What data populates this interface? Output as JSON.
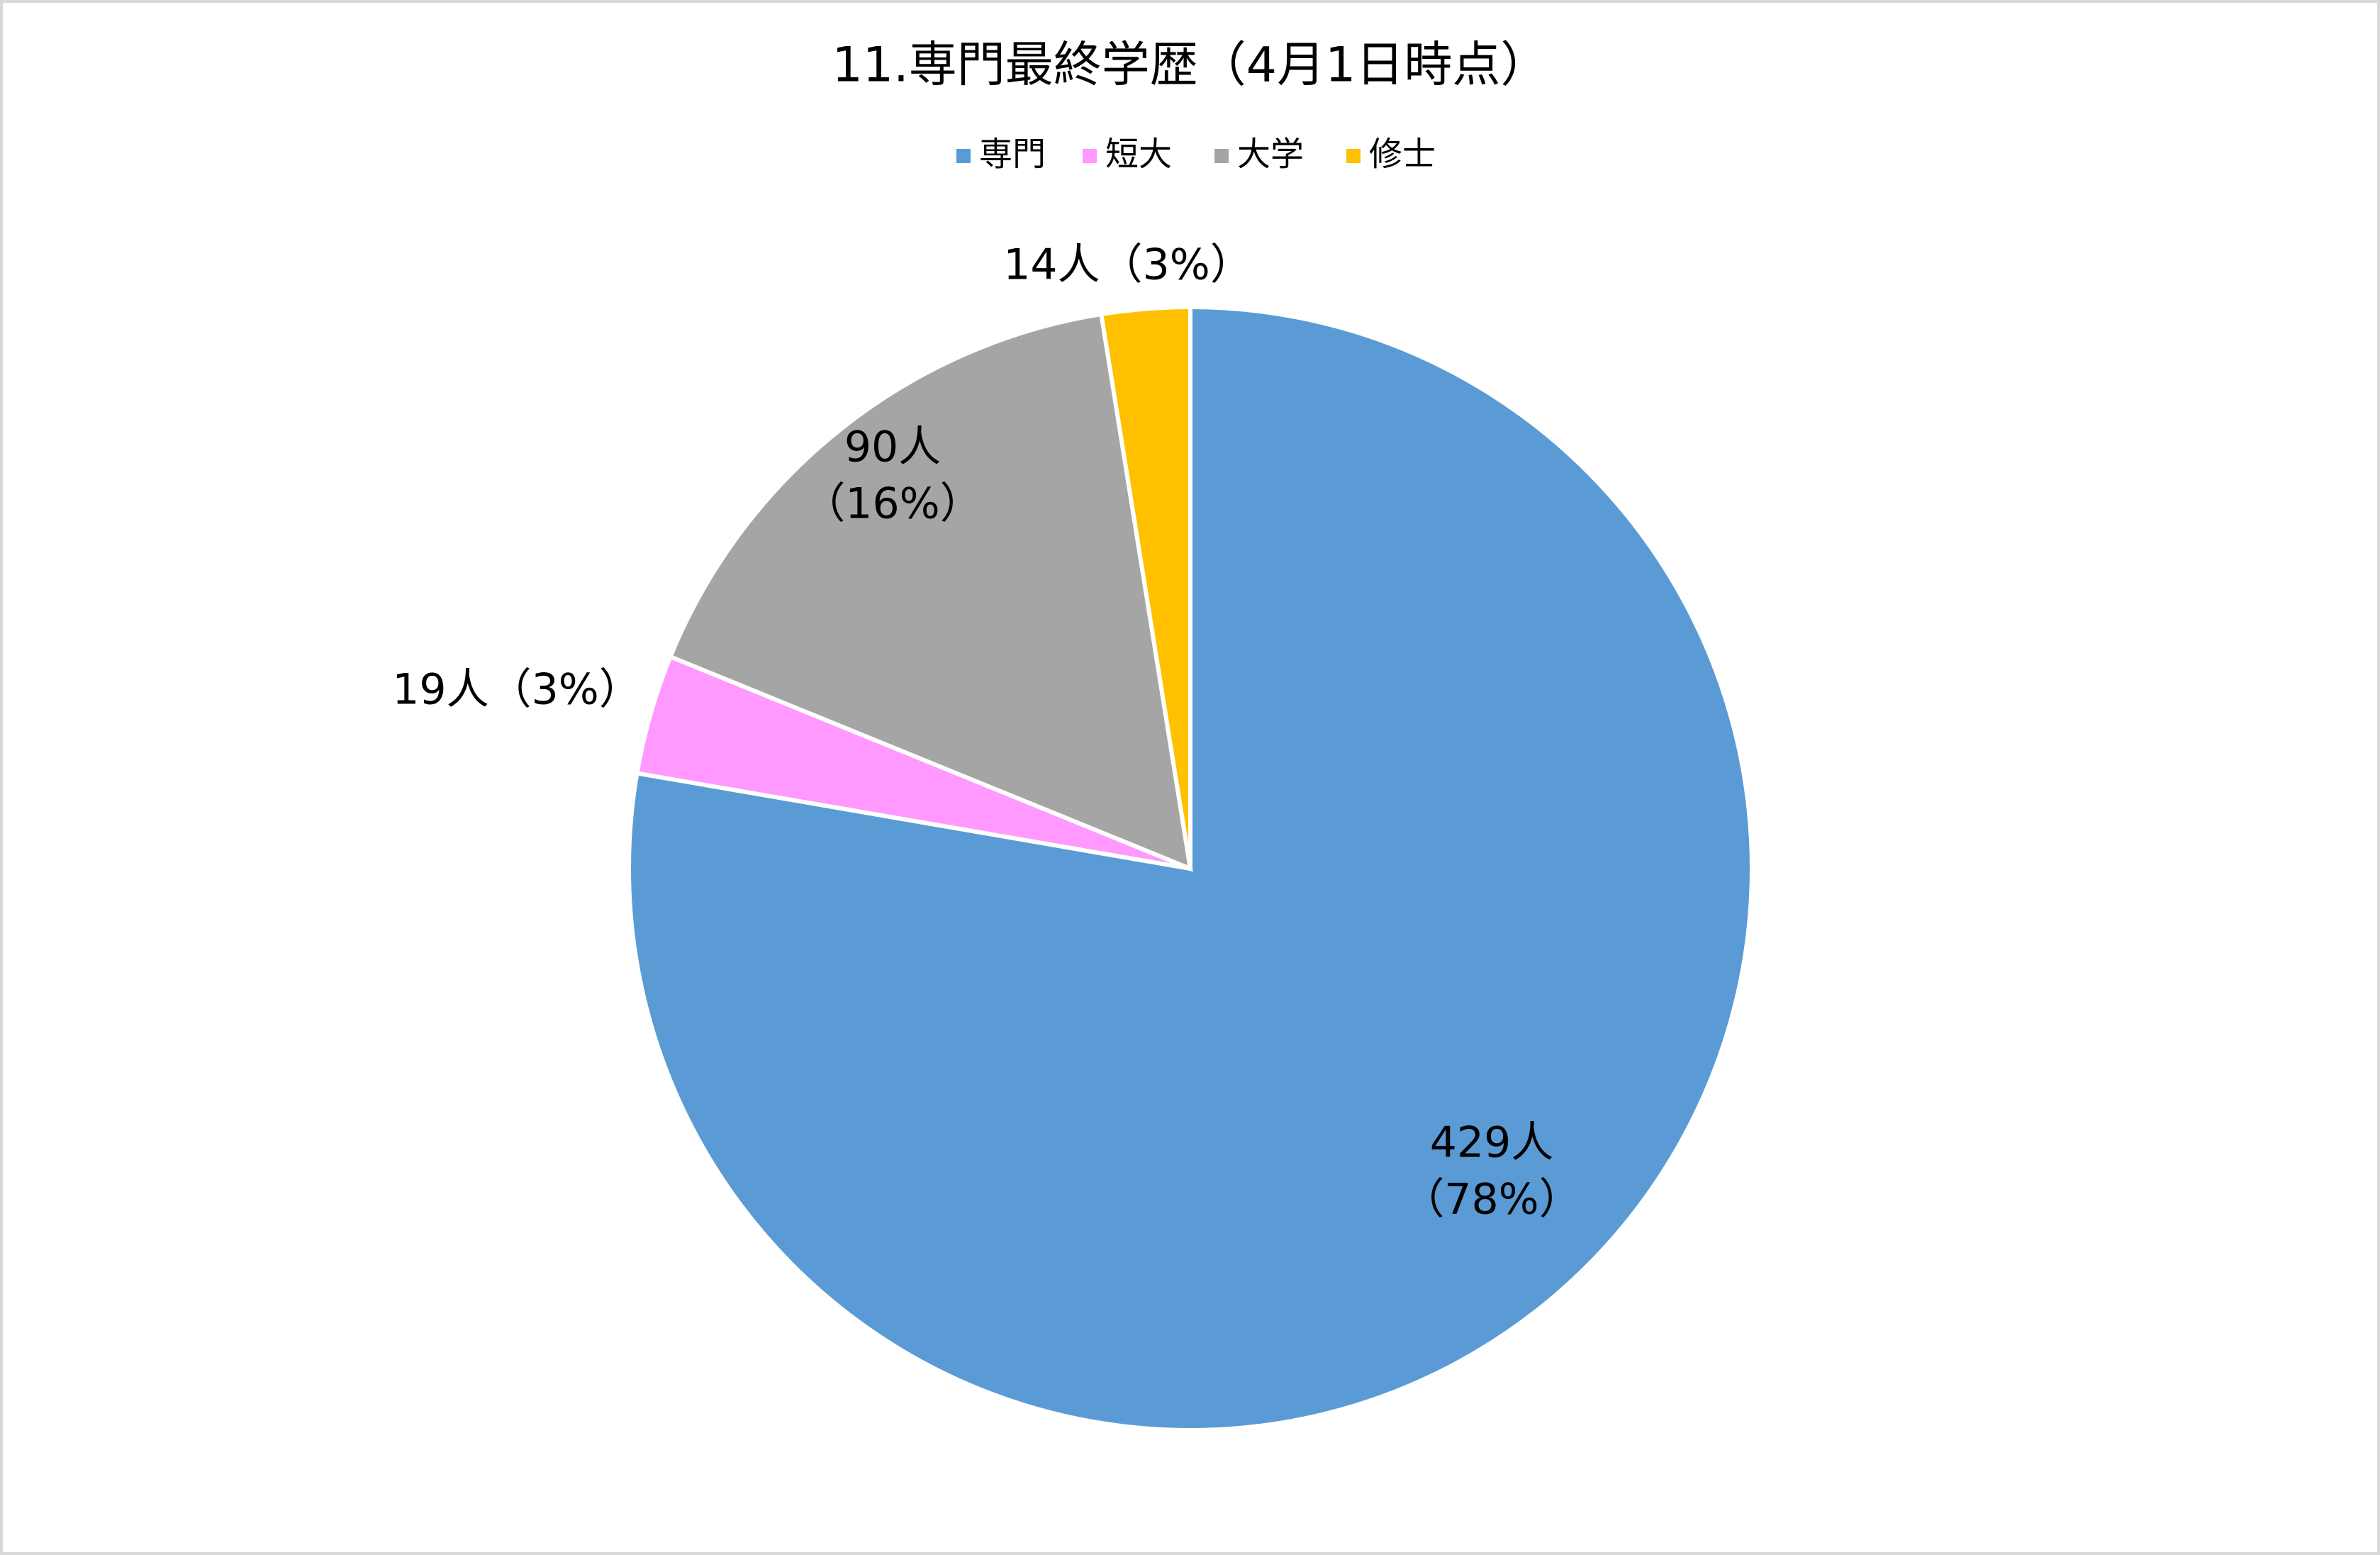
{
  "chart_data": {
    "type": "pie",
    "title": "11.専門最終学歴（4月1日時点）",
    "categories": [
      "専門",
      "短大",
      "大学",
      "修士"
    ],
    "values": [
      429,
      19,
      90,
      14
    ],
    "value_labels": [
      [
        "429人",
        "（78%）"
      ],
      [
        "19人（3%）"
      ],
      [
        "90人",
        "（16%）"
      ],
      [
        "14人（3%）"
      ]
    ],
    "colors": [
      "#5b9bd5",
      "#ff99ff",
      "#a5a5a5",
      "#ffc000"
    ],
    "legend": "top"
  }
}
